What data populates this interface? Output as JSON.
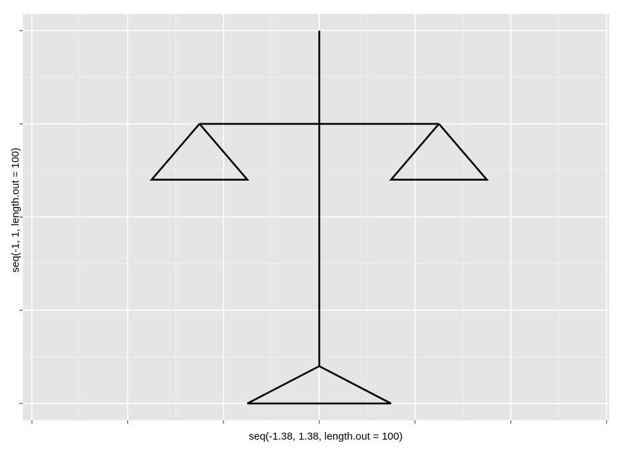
{
  "chart_data": {
    "type": "line",
    "title": "",
    "xlabel": "seq(-1.38, 1.38, length.out = 100)",
    "ylabel": "seq(-1, 1, length.out = 100)",
    "xlim": [
      -1.38,
      1.38
    ],
    "ylim": [
      -1,
      1
    ],
    "x_major_ticks": [
      -1.38,
      -0.92,
      -0.46,
      0,
      0.46,
      0.92,
      1.38
    ],
    "y_major_ticks": [
      -1,
      -0.5,
      0,
      0.5,
      1
    ],
    "tick_labels_shown": false,
    "grid": true,
    "panel_background": "#e5e5e5",
    "grid_color": "#ffffff",
    "line_color": "#000000",
    "series": [
      {
        "x": [
          0,
          0
        ],
        "y": [
          1,
          -0.8
        ]
      },
      {
        "x": [
          -0.575,
          0.575
        ],
        "y": [
          0.5,
          0.5
        ]
      },
      {
        "x": [
          -0.575,
          -0.805,
          -0.345,
          -0.575
        ],
        "y": [
          0.5,
          0.2,
          0.2,
          0.5
        ]
      },
      {
        "x": [
          0.575,
          0.345,
          0.805,
          0.575
        ],
        "y": [
          0.5,
          0.2,
          0.2,
          0.5
        ]
      },
      {
        "x": [
          0,
          -0.345,
          0.345,
          0
        ],
        "y": [
          -0.8,
          -1,
          -1,
          -0.8
        ]
      }
    ]
  }
}
